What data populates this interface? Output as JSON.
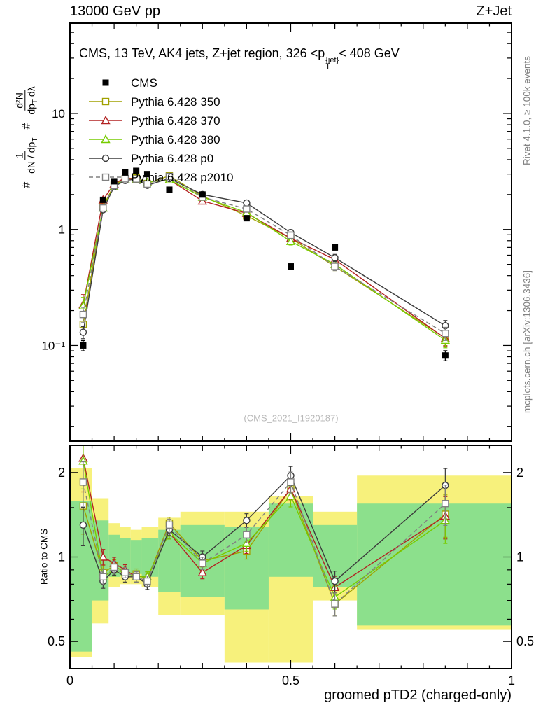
{
  "header": {
    "beam": "13000 GeV pp",
    "process": "Z+Jet"
  },
  "side_notes": {
    "right_top": "Rivet 4.1.0, ≥ 100k events",
    "right_bottom": "mcplots.cern.ch [arXiv:1306.3436]"
  },
  "watermark": "(CMS_2021_I1920187)",
  "main_plot": {
    "title_parts": {
      "prefix": "CMS, 13 TeV, AK4 jets, Z+jet region, 326 <p",
      "sup": "{jet}",
      "sub": "T",
      "suffix": "< 408 GeV"
    },
    "ylabel_parts": {
      "hash1": "#",
      "f1_num": "1",
      "f1_den_main": "dN / dp",
      "f1_den_sub": "T",
      "hash2": "#",
      "f2_num": "d²N",
      "f2_den_main": "dp",
      "f2_den_sub": "T",
      "f2_den_tail": " dλ"
    }
  },
  "chart_data": {
    "type": "line",
    "title": "CMS, 13 TeV, AK4 jets, Z+jet region, 326 <p_T^{jet}< 408 GeV",
    "xlabel": "groomed pTD2 (charged-only)",
    "ylabel": "# 1/(dN/dp_T) d²N/(dp_T dλ)",
    "legend_position": "top-left",
    "grid": false,
    "xlim": [
      0,
      1
    ],
    "x_ticks": {
      "values": [
        0,
        0.5,
        1
      ],
      "labels": [
        "0",
        "0.5",
        "1"
      ]
    },
    "x": [
      0.03,
      0.075,
      0.1,
      0.125,
      0.15,
      0.175,
      0.225,
      0.3,
      0.4,
      0.5,
      0.6,
      0.85
    ],
    "main": {
      "yscale": "log",
      "ylim": [
        0.015,
        60
      ],
      "y_ticks": {
        "values": [
          10,
          1,
          0.1
        ],
        "labels": [
          "10",
          "1",
          "10⁻¹"
        ]
      },
      "series": [
        {
          "name": "CMS",
          "marker": "filled-square",
          "color": "#000000",
          "line": "none",
          "values": [
            0.1,
            1.8,
            2.6,
            3.1,
            3.2,
            3.0,
            2.2,
            2.0,
            1.25,
            0.48,
            0.7,
            0.082
          ],
          "yerr_rel": [
            0.1,
            0.04,
            0.03,
            0.03,
            0.03,
            0.03,
            0.03,
            0.03,
            0.04,
            0.05,
            0.05,
            0.1
          ]
        },
        {
          "name": "Pythia 6.428 350",
          "marker": "open-square",
          "color": "#a0a000",
          "line": "solid",
          "values": [
            0.152,
            1.58,
            2.42,
            2.73,
            2.78,
            2.49,
            2.9,
            1.94,
            1.31,
            0.84,
            0.48,
            0.116
          ],
          "yerr_rel": [
            0.18,
            0.05,
            0.04,
            0.03,
            0.03,
            0.03,
            0.04,
            0.04,
            0.05,
            0.07,
            0.08,
            0.14
          ]
        },
        {
          "name": "Pythia 6.428 370",
          "marker": "open-triangle",
          "color": "#b22222",
          "line": "solid",
          "values": [
            0.225,
            1.8,
            2.47,
            2.79,
            2.72,
            2.55,
            2.68,
            1.76,
            1.38,
            0.84,
            0.55,
            0.115
          ],
          "yerr_rel": [
            0.22,
            0.05,
            0.04,
            0.03,
            0.03,
            0.03,
            0.04,
            0.04,
            0.05,
            0.07,
            0.08,
            0.14
          ]
        },
        {
          "name": "Pythia 6.428 380",
          "marker": "open-triangle",
          "color": "#77cc00",
          "line": "solid",
          "values": [
            0.22,
            1.53,
            2.34,
            2.73,
            2.72,
            2.55,
            2.68,
            1.9,
            1.4,
            0.79,
            0.5,
            0.111
          ],
          "yerr_rel": [
            0.18,
            0.05,
            0.04,
            0.03,
            0.03,
            0.03,
            0.04,
            0.04,
            0.05,
            0.07,
            0.08,
            0.14
          ]
        },
        {
          "name": "Pythia 6.428 p0",
          "marker": "open-circle",
          "color": "#3c3c3c",
          "line": "solid",
          "values": [
            0.13,
            1.48,
            2.34,
            2.64,
            2.72,
            2.4,
            2.75,
            2.0,
            1.69,
            0.94,
            0.57,
            0.148
          ],
          "yerr_rel": [
            0.12,
            0.04,
            0.03,
            0.03,
            0.03,
            0.03,
            0.03,
            0.04,
            0.04,
            0.06,
            0.07,
            0.11
          ]
        },
        {
          "name": "Pythia 6.428 p2010",
          "marker": "open-square",
          "color": "#808080",
          "line": "dashed",
          "values": [
            0.185,
            1.53,
            2.39,
            2.73,
            2.72,
            2.46,
            2.86,
            1.9,
            1.5,
            0.89,
            0.48,
            0.127
          ],
          "yerr_rel": [
            0.15,
            0.05,
            0.04,
            0.03,
            0.03,
            0.03,
            0.04,
            0.04,
            0.05,
            0.07,
            0.08,
            0.13
          ]
        }
      ]
    },
    "ratio": {
      "ylabel": "Ratio to CMS",
      "yscale": "log",
      "ylim": [
        0.4,
        2.5
      ],
      "reference": 1,
      "y_ticks": {
        "values": [
          2,
          1,
          0.5
        ],
        "labels": [
          "2",
          "1",
          "0.5"
        ]
      },
      "minor_ticks": [
        0.6,
        0.7,
        0.8,
        0.9,
        1.5
      ],
      "series": [
        {
          "name": "Pythia 6.428 350",
          "values": [
            1.52,
            0.88,
            0.93,
            0.88,
            0.87,
            0.83,
            1.32,
            0.97,
            1.05,
            1.75,
            0.68,
            1.42
          ]
        },
        {
          "name": "Pythia 6.428 370",
          "values": [
            2.25,
            1.0,
            0.95,
            0.9,
            0.85,
            0.85,
            1.22,
            0.88,
            1.1,
            1.75,
            0.78,
            1.4
          ]
        },
        {
          "name": "Pythia 6.428 380",
          "values": [
            2.2,
            0.85,
            0.9,
            0.88,
            0.85,
            0.85,
            1.22,
            0.95,
            1.12,
            1.65,
            0.72,
            1.35
          ]
        },
        {
          "name": "Pythia 6.428 p0",
          "values": [
            1.3,
            0.82,
            0.9,
            0.85,
            0.85,
            0.8,
            1.25,
            1.0,
            1.35,
            1.95,
            0.82,
            1.8
          ]
        },
        {
          "name": "Pythia 6.428 p2010",
          "values": [
            1.85,
            0.85,
            0.92,
            0.88,
            0.85,
            0.82,
            1.3,
            0.95,
            1.2,
            1.85,
            0.68,
            1.55
          ]
        }
      ],
      "bands": {
        "yellow_color": "#f7f17c",
        "green_color": "#8ce08c",
        "bin_edges": [
          0,
          0.05,
          0.0875,
          0.1125,
          0.1375,
          0.1625,
          0.2,
          0.25,
          0.35,
          0.45,
          0.55,
          0.65,
          1.0
        ],
        "yellow": [
          [
            0.44,
            2.08
          ],
          [
            0.58,
            1.62
          ],
          [
            0.78,
            1.32
          ],
          [
            0.8,
            1.28
          ],
          [
            0.8,
            1.25
          ],
          [
            0.78,
            1.28
          ],
          [
            0.62,
            1.38
          ],
          [
            0.62,
            1.45
          ],
          [
            0.42,
            1.45
          ],
          [
            0.42,
            1.65
          ],
          [
            0.7,
            1.45
          ],
          [
            0.55,
            1.95
          ]
        ],
        "green": [
          [
            0.46,
            1.58
          ],
          [
            0.7,
            1.35
          ],
          [
            0.85,
            1.2
          ],
          [
            0.86,
            1.17
          ],
          [
            0.87,
            1.15
          ],
          [
            0.85,
            1.17
          ],
          [
            0.75,
            1.25
          ],
          [
            0.72,
            1.3
          ],
          [
            0.65,
            1.28
          ],
          [
            0.85,
            1.55
          ],
          [
            0.78,
            1.3
          ],
          [
            0.57,
            1.55
          ]
        ]
      }
    }
  }
}
